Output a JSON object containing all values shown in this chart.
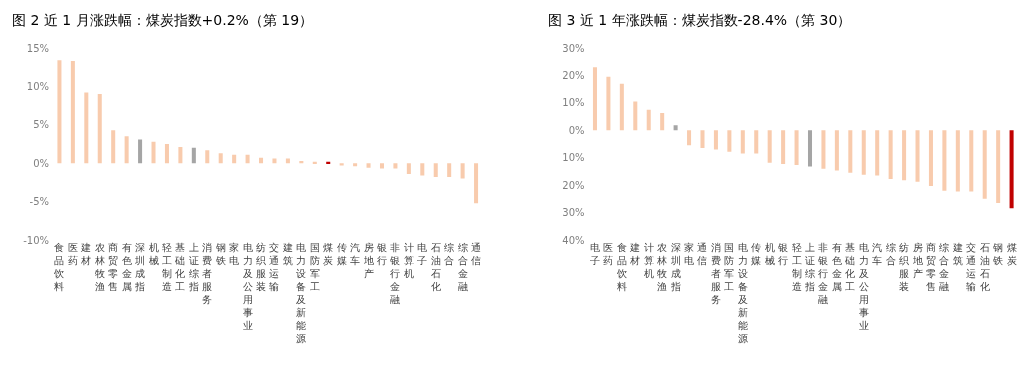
{
  "chart_data": [
    {
      "type": "bar",
      "title": "图 2 近 1 月涨跌幅：煤炭指数+0.2%（第 19）",
      "categories": [
        "食品饮料",
        "医药",
        "建材",
        "农林牧渔",
        "商贸零售",
        "有色金属",
        "深圳成指",
        "机械",
        "轻工制造",
        "基础化工",
        "上证综指",
        "消费者服务",
        "钢铁",
        "家电",
        "电力及公用事业",
        "纺织服装",
        "交通运输",
        "建筑",
        "电力设备及新能源",
        "国防军工",
        "煤炭",
        "传媒",
        "汽车",
        "房地产",
        "银行",
        "非银行金融",
        "计算机",
        "电子",
        "石油石化",
        "综合",
        "综合金融",
        "通信"
      ],
      "values": [
        13.4,
        13.3,
        9.2,
        9.0,
        4.3,
        3.5,
        3.1,
        2.8,
        2.5,
        2.1,
        2.0,
        1.7,
        1.3,
        1.1,
        1.1,
        0.7,
        0.6,
        0.6,
        0.3,
        0.2,
        0.2,
        -0.3,
        -0.4,
        -0.6,
        -0.7,
        -0.7,
        -1.4,
        -1.6,
        -1.8,
        -1.8,
        -2.0,
        -5.2
      ],
      "colors": [
        "#f8cbad",
        "#f8cbad",
        "#f8cbad",
        "#f8cbad",
        "#f8cbad",
        "#f8cbad",
        "#a5a5a5",
        "#f8cbad",
        "#f8cbad",
        "#f8cbad",
        "#a5a5a5",
        "#f8cbad",
        "#f8cbad",
        "#f8cbad",
        "#f8cbad",
        "#f8cbad",
        "#f8cbad",
        "#f8cbad",
        "#f8cbad",
        "#f8cbad",
        "#c00000",
        "#f8cbad",
        "#f8cbad",
        "#f8cbad",
        "#f8cbad",
        "#f8cbad",
        "#f8cbad",
        "#f8cbad",
        "#f8cbad",
        "#f8cbad",
        "#f8cbad",
        "#f8cbad"
      ],
      "ylim": [
        -10,
        15
      ],
      "yticks": [
        {
          "value": 15,
          "label": "15%"
        },
        {
          "value": 10,
          "label": "10%"
        },
        {
          "value": 5,
          "label": "5%"
        },
        {
          "value": 0,
          "label": "0%"
        },
        {
          "value": -5,
          "label": "-5%"
        },
        {
          "value": -10,
          "label": "-10%"
        }
      ],
      "grid": false
    },
    {
      "type": "bar",
      "title": "图 3 近 1 年涨跌幅：煤炭指数-28.4%（第 30）",
      "categories": [
        "电子",
        "医药",
        "食品饮料",
        "建材",
        "计算机",
        "农林牧渔",
        "深圳成指",
        "家电",
        "通信",
        "消费者服务",
        "国防军工",
        "电力设备及新能源",
        "传媒",
        "机械",
        "银行",
        "轻工制造",
        "上证综指",
        "非银行金融",
        "有色金属",
        "基础化工",
        "电力及公用事业",
        "汽车",
        "综合",
        "纺织服装",
        "房地产",
        "商贸零售",
        "综合金融",
        "建筑",
        "交通运输",
        "石油石化",
        "钢铁",
        "煤炭"
      ],
      "values": [
        23,
        19.5,
        17,
        10.5,
        7.5,
        6.3,
        1.8,
        -5.5,
        -6.5,
        -7,
        -7.8,
        -8.5,
        -8.5,
        -11.8,
        -12.3,
        -12.7,
        -13.2,
        -14,
        -14.7,
        -15.5,
        -16.2,
        -16.5,
        -17.8,
        -18.2,
        -18.8,
        -20.3,
        -22,
        -22.3,
        -22.3,
        -25,
        -26.5,
        -28.4
      ],
      "colors": [
        "#f8cbad",
        "#f8cbad",
        "#f8cbad",
        "#f8cbad",
        "#f8cbad",
        "#f8cbad",
        "#a5a5a5",
        "#f8cbad",
        "#f8cbad",
        "#f8cbad",
        "#f8cbad",
        "#f8cbad",
        "#f8cbad",
        "#f8cbad",
        "#f8cbad",
        "#f8cbad",
        "#a5a5a5",
        "#f8cbad",
        "#f8cbad",
        "#f8cbad",
        "#f8cbad",
        "#f8cbad",
        "#f8cbad",
        "#f8cbad",
        "#f8cbad",
        "#f8cbad",
        "#f8cbad",
        "#f8cbad",
        "#f8cbad",
        "#f8cbad",
        "#f8cbad",
        "#c00000"
      ],
      "ylim": [
        -40,
        30
      ],
      "yticks": [
        {
          "value": 30,
          "label": "30%"
        },
        {
          "value": 20,
          "label": "20%"
        },
        {
          "value": 10,
          "label": "10%"
        },
        {
          "value": 0,
          "label": "0%"
        },
        {
          "value": -10,
          "label": "10%"
        },
        {
          "value": -20,
          "label": "20%"
        },
        {
          "value": -30,
          "label": "30%"
        },
        {
          "value": -40,
          "label": "40%"
        }
      ],
      "grid": false
    }
  ]
}
